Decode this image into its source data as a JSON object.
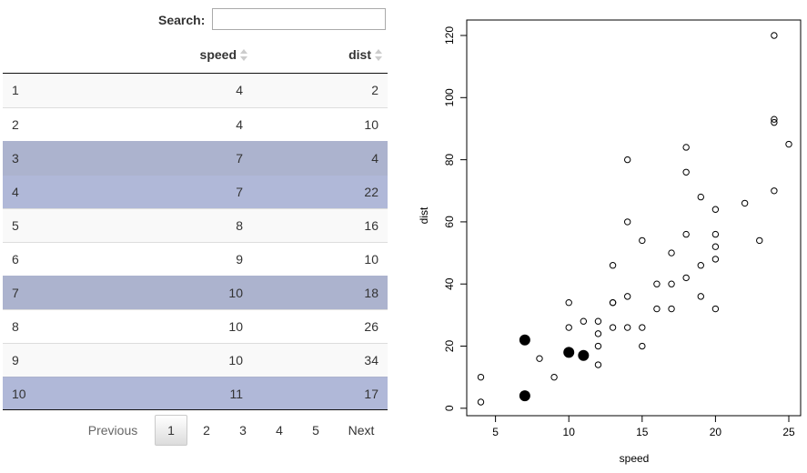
{
  "search": {
    "label": "Search:",
    "value": "",
    "placeholder": ""
  },
  "table": {
    "columns": {
      "index": "",
      "speed": "speed",
      "dist": "dist"
    },
    "rows": [
      {
        "idx": "1",
        "speed": "4",
        "dist": "2",
        "selected": false
      },
      {
        "idx": "2",
        "speed": "4",
        "dist": "10",
        "selected": false
      },
      {
        "idx": "3",
        "speed": "7",
        "dist": "4",
        "selected": true
      },
      {
        "idx": "4",
        "speed": "7",
        "dist": "22",
        "selected": true
      },
      {
        "idx": "5",
        "speed": "8",
        "dist": "16",
        "selected": false
      },
      {
        "idx": "6",
        "speed": "9",
        "dist": "10",
        "selected": false
      },
      {
        "idx": "7",
        "speed": "10",
        "dist": "18",
        "selected": true
      },
      {
        "idx": "8",
        "speed": "10",
        "dist": "26",
        "selected": false
      },
      {
        "idx": "9",
        "speed": "10",
        "dist": "34",
        "selected": false
      },
      {
        "idx": "10",
        "speed": "11",
        "dist": "17",
        "selected": true
      }
    ],
    "colors": {
      "selected": "#acb3ce",
      "striped": "#f9f9f9"
    }
  },
  "pagination": {
    "previous": "Previous",
    "pages": [
      "1",
      "2",
      "3",
      "4",
      "5"
    ],
    "current": "1",
    "next": "Next"
  },
  "chart_data": {
    "type": "scatter",
    "title": "",
    "xlabel": "speed",
    "ylabel": "dist",
    "xlim": [
      4,
      25
    ],
    "ylim": [
      2,
      120
    ],
    "xticks": [
      5,
      10,
      15,
      20,
      25
    ],
    "yticks": [
      0,
      20,
      40,
      60,
      80,
      100,
      120
    ],
    "grid": false,
    "points": [
      [
        4,
        2
      ],
      [
        4,
        10
      ],
      [
        7,
        4
      ],
      [
        7,
        22
      ],
      [
        8,
        16
      ],
      [
        9,
        10
      ],
      [
        10,
        18
      ],
      [
        10,
        26
      ],
      [
        10,
        34
      ],
      [
        11,
        17
      ],
      [
        11,
        28
      ],
      [
        12,
        14
      ],
      [
        12,
        20
      ],
      [
        12,
        24
      ],
      [
        12,
        28
      ],
      [
        13,
        26
      ],
      [
        13,
        34
      ],
      [
        13,
        34
      ],
      [
        13,
        46
      ],
      [
        14,
        26
      ],
      [
        14,
        36
      ],
      [
        14,
        60
      ],
      [
        14,
        80
      ],
      [
        15,
        20
      ],
      [
        15,
        26
      ],
      [
        15,
        54
      ],
      [
        16,
        32
      ],
      [
        16,
        40
      ],
      [
        17,
        32
      ],
      [
        17,
        40
      ],
      [
        17,
        50
      ],
      [
        18,
        42
      ],
      [
        18,
        56
      ],
      [
        18,
        76
      ],
      [
        18,
        84
      ],
      [
        19,
        36
      ],
      [
        19,
        46
      ],
      [
        19,
        68
      ],
      [
        20,
        32
      ],
      [
        20,
        48
      ],
      [
        20,
        52
      ],
      [
        20,
        56
      ],
      [
        20,
        64
      ],
      [
        22,
        66
      ],
      [
        23,
        54
      ],
      [
        24,
        70
      ],
      [
        24,
        92
      ],
      [
        24,
        93
      ],
      [
        24,
        120
      ],
      [
        25,
        85
      ]
    ],
    "highlighted": [
      [
        7,
        4
      ],
      [
        7,
        22
      ],
      [
        10,
        18
      ],
      [
        11,
        17
      ]
    ]
  }
}
